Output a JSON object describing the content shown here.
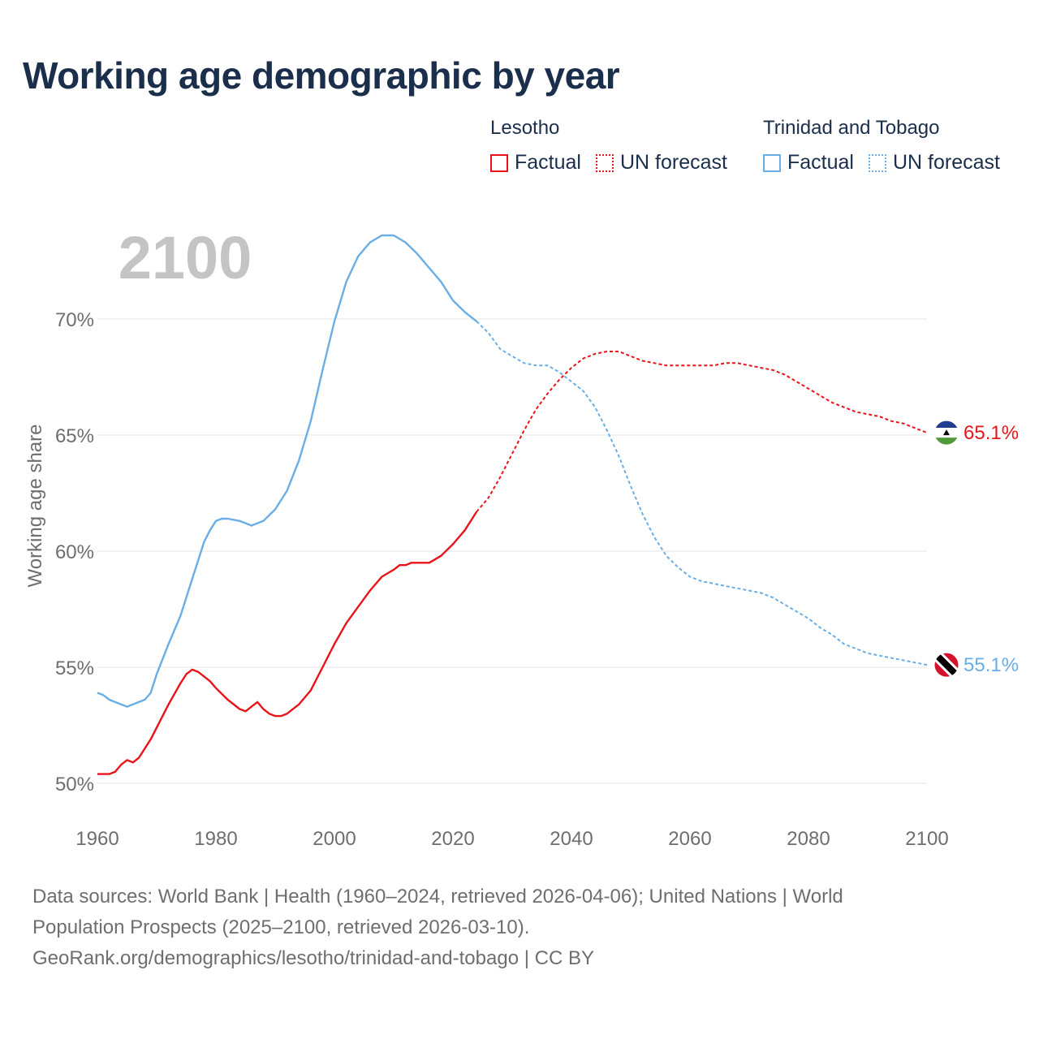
{
  "title": "Working age demographic by year",
  "legend": {
    "groups": [
      {
        "country": "Lesotho",
        "color": "#e8141a",
        "factual_label": "Factual",
        "forecast_label": "UN forecast"
      },
      {
        "country": "Trinidad and Tobago",
        "color": "#6aaee6",
        "factual_label": "Factual",
        "forecast_label": "UN forecast"
      }
    ]
  },
  "footer": {
    "line1": "Data sources: World Bank | Health (1960–2024, retrieved 2026-04-06); United Nations | World",
    "line2": "Population Prospects (2025–2100, retrieved 2026-03-10).",
    "line3": "GeoRank.org/demographics/lesotho/trinidad-and-tobago | CC BY"
  },
  "chart_data": {
    "type": "line",
    "title": "Working age demographic by year",
    "year_overlay": "2100",
    "ylabel": "Working age share",
    "xlabel": "",
    "xlim": [
      1960,
      2100
    ],
    "ylim": [
      49.5,
      74
    ],
    "x_ticks": [
      1960,
      1980,
      2000,
      2020,
      2040,
      2060,
      2080,
      2100
    ],
    "y_ticks": [
      50,
      55,
      60,
      65,
      70
    ],
    "y_tick_labels": [
      "50%",
      "55%",
      "60%",
      "65%",
      "70%"
    ],
    "grid": true,
    "factual_end_year": 2024,
    "series": [
      {
        "name": "Lesotho",
        "color": "#e8141a",
        "end_label": "65.1%",
        "flag": "lesotho",
        "points": [
          [
            1960,
            50.4
          ],
          [
            1962,
            50.4
          ],
          [
            1963,
            50.5
          ],
          [
            1964,
            50.8
          ],
          [
            1965,
            51.0
          ],
          [
            1966,
            50.9
          ],
          [
            1967,
            51.1
          ],
          [
            1968,
            51.5
          ],
          [
            1969,
            51.9
          ],
          [
            1970,
            52.4
          ],
          [
            1972,
            53.4
          ],
          [
            1974,
            54.3
          ],
          [
            1975,
            54.7
          ],
          [
            1976,
            54.9
          ],
          [
            1977,
            54.8
          ],
          [
            1978,
            54.6
          ],
          [
            1979,
            54.4
          ],
          [
            1980,
            54.1
          ],
          [
            1982,
            53.6
          ],
          [
            1984,
            53.2
          ],
          [
            1985,
            53.1
          ],
          [
            1986,
            53.3
          ],
          [
            1987,
            53.5
          ],
          [
            1988,
            53.2
          ],
          [
            1989,
            53.0
          ],
          [
            1990,
            52.9
          ],
          [
            1991,
            52.9
          ],
          [
            1992,
            53.0
          ],
          [
            1994,
            53.4
          ],
          [
            1996,
            54.0
          ],
          [
            1998,
            55.0
          ],
          [
            2000,
            56.0
          ],
          [
            2002,
            56.9
          ],
          [
            2004,
            57.6
          ],
          [
            2006,
            58.3
          ],
          [
            2008,
            58.9
          ],
          [
            2010,
            59.2
          ],
          [
            2011,
            59.4
          ],
          [
            2012,
            59.4
          ],
          [
            2013,
            59.5
          ],
          [
            2014,
            59.5
          ],
          [
            2015,
            59.5
          ],
          [
            2016,
            59.5
          ],
          [
            2018,
            59.8
          ],
          [
            2020,
            60.3
          ],
          [
            2022,
            60.9
          ],
          [
            2024,
            61.7
          ],
          [
            2026,
            62.3
          ],
          [
            2028,
            63.2
          ],
          [
            2030,
            64.2
          ],
          [
            2032,
            65.2
          ],
          [
            2034,
            66.1
          ],
          [
            2036,
            66.8
          ],
          [
            2038,
            67.4
          ],
          [
            2040,
            67.9
          ],
          [
            2042,
            68.3
          ],
          [
            2044,
            68.5
          ],
          [
            2046,
            68.6
          ],
          [
            2048,
            68.6
          ],
          [
            2050,
            68.4
          ],
          [
            2052,
            68.2
          ],
          [
            2054,
            68.1
          ],
          [
            2056,
            68.0
          ],
          [
            2060,
            68.0
          ],
          [
            2064,
            68.0
          ],
          [
            2066,
            68.1
          ],
          [
            2068,
            68.1
          ],
          [
            2070,
            68.0
          ],
          [
            2072,
            67.9
          ],
          [
            2074,
            67.8
          ],
          [
            2076,
            67.6
          ],
          [
            2078,
            67.3
          ],
          [
            2080,
            67.0
          ],
          [
            2082,
            66.7
          ],
          [
            2084,
            66.4
          ],
          [
            2086,
            66.2
          ],
          [
            2088,
            66.0
          ],
          [
            2090,
            65.9
          ],
          [
            2092,
            65.8
          ],
          [
            2094,
            65.6
          ],
          [
            2096,
            65.5
          ],
          [
            2098,
            65.3
          ],
          [
            2100,
            65.1
          ]
        ]
      },
      {
        "name": "Trinidad and Tobago",
        "color": "#6aaee6",
        "end_label": "55.1%",
        "flag": "trinidad-and-tobago",
        "points": [
          [
            1960,
            53.9
          ],
          [
            1961,
            53.8
          ],
          [
            1962,
            53.6
          ],
          [
            1963,
            53.5
          ],
          [
            1964,
            53.4
          ],
          [
            1965,
            53.3
          ],
          [
            1966,
            53.4
          ],
          [
            1967,
            53.5
          ],
          [
            1968,
            53.6
          ],
          [
            1969,
            53.9
          ],
          [
            1970,
            54.7
          ],
          [
            1972,
            56.0
          ],
          [
            1974,
            57.2
          ],
          [
            1976,
            58.8
          ],
          [
            1978,
            60.4
          ],
          [
            1979,
            60.9
          ],
          [
            1980,
            61.3
          ],
          [
            1981,
            61.4
          ],
          [
            1982,
            61.4
          ],
          [
            1984,
            61.3
          ],
          [
            1986,
            61.1
          ],
          [
            1988,
            61.3
          ],
          [
            1990,
            61.8
          ],
          [
            1992,
            62.6
          ],
          [
            1994,
            63.9
          ],
          [
            1996,
            65.6
          ],
          [
            1998,
            67.8
          ],
          [
            2000,
            69.9
          ],
          [
            2002,
            71.6
          ],
          [
            2004,
            72.7
          ],
          [
            2006,
            73.3
          ],
          [
            2008,
            73.6
          ],
          [
            2010,
            73.6
          ],
          [
            2012,
            73.3
          ],
          [
            2014,
            72.8
          ],
          [
            2016,
            72.2
          ],
          [
            2018,
            71.6
          ],
          [
            2020,
            70.8
          ],
          [
            2022,
            70.3
          ],
          [
            2024,
            69.9
          ],
          [
            2026,
            69.4
          ],
          [
            2028,
            68.7
          ],
          [
            2030,
            68.4
          ],
          [
            2032,
            68.1
          ],
          [
            2034,
            68.0
          ],
          [
            2036,
            68.0
          ],
          [
            2038,
            67.7
          ],
          [
            2040,
            67.3
          ],
          [
            2042,
            66.9
          ],
          [
            2044,
            66.2
          ],
          [
            2046,
            65.2
          ],
          [
            2048,
            64.1
          ],
          [
            2050,
            62.8
          ],
          [
            2052,
            61.6
          ],
          [
            2054,
            60.6
          ],
          [
            2056,
            59.8
          ],
          [
            2058,
            59.3
          ],
          [
            2060,
            58.9
          ],
          [
            2062,
            58.7
          ],
          [
            2064,
            58.6
          ],
          [
            2066,
            58.5
          ],
          [
            2068,
            58.4
          ],
          [
            2070,
            58.3
          ],
          [
            2072,
            58.2
          ],
          [
            2074,
            58.0
          ],
          [
            2076,
            57.7
          ],
          [
            2078,
            57.4
          ],
          [
            2080,
            57.1
          ],
          [
            2082,
            56.7
          ],
          [
            2084,
            56.4
          ],
          [
            2086,
            56.0
          ],
          [
            2088,
            55.8
          ],
          [
            2090,
            55.6
          ],
          [
            2092,
            55.5
          ],
          [
            2094,
            55.4
          ],
          [
            2096,
            55.3
          ],
          [
            2098,
            55.2
          ],
          [
            2100,
            55.1
          ]
        ]
      }
    ]
  }
}
